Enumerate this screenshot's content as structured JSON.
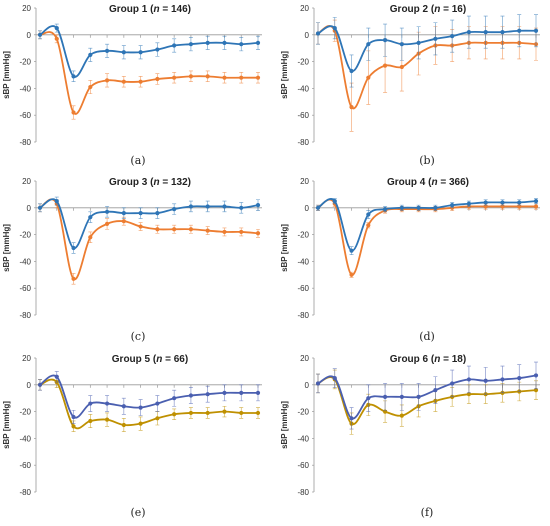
{
  "y_axis_label": "sBP [mmHg]",
  "y_ticks": [
    20,
    0,
    -20,
    -40,
    -60,
    -80
  ],
  "colors": {
    "blue": "#2e75b6",
    "orange": "#ed7d31",
    "yellow": "#bf9000",
    "dark_blue": "#4a5fb0"
  },
  "chart_data": [
    {
      "type": "line",
      "caption": "(a)",
      "title_prefix": "Group 1 (",
      "title_n": "n",
      "title_suffix": " = 146)",
      "ylim": [
        -80,
        20
      ],
      "series": [
        {
          "color": "blue",
          "values": [
            0,
            5,
            -31,
            -15,
            -12,
            -13,
            -13,
            -11,
            -8,
            -7,
            -6,
            -6,
            -7,
            -6
          ],
          "errors": [
            3,
            3,
            4,
            5,
            5,
            5,
            5,
            5,
            5,
            5,
            5,
            5,
            5,
            5
          ]
        },
        {
          "color": "orange",
          "values": [
            0,
            -3,
            -58,
            -39,
            -34,
            -35,
            -35,
            -33,
            -32,
            -31,
            -31,
            -32,
            -32,
            -32
          ],
          "errors": [
            3,
            3,
            5,
            5,
            5,
            4,
            4,
            4,
            4,
            4,
            4,
            4,
            4,
            4
          ]
        }
      ]
    },
    {
      "type": "line",
      "caption": "(b)",
      "title_prefix": "Group 2 (",
      "title_n": "n",
      "title_suffix": " = 16)",
      "ylim": [
        -80,
        20
      ],
      "series": [
        {
          "color": "blue",
          "values": [
            1,
            5,
            -27,
            -7,
            -4,
            -7,
            -6,
            -3,
            -1,
            2,
            2,
            2,
            3,
            3
          ],
          "errors": [
            8,
            8,
            12,
            12,
            12,
            12,
            12,
            12,
            12,
            12,
            12,
            12,
            12,
            12
          ]
        },
        {
          "color": "orange",
          "values": [
            1,
            3,
            -54,
            -32,
            -23,
            -24,
            -14,
            -8,
            -8,
            -6,
            -6,
            -6,
            -6,
            -7
          ],
          "errors": [
            8,
            8,
            18,
            20,
            20,
            18,
            16,
            14,
            12,
            12,
            12,
            12,
            12,
            12
          ]
        }
      ]
    },
    {
      "type": "line",
      "caption": "(c)",
      "title_prefix": "Group 3 (",
      "title_n": "n",
      "title_suffix": " = 132)",
      "ylim": [
        -80,
        20
      ],
      "series": [
        {
          "color": "blue",
          "values": [
            0,
            5,
            -30,
            -7,
            -3,
            -4,
            -4,
            -4,
            -1,
            1,
            1,
            1,
            0,
            2
          ],
          "errors": [
            3,
            3,
            4,
            4,
            4,
            4,
            4,
            4,
            4,
            4,
            4,
            4,
            4,
            4
          ]
        },
        {
          "color": "orange",
          "values": [
            0,
            3,
            -53,
            -22,
            -12,
            -10,
            -14,
            -16,
            -16,
            -16,
            -17,
            -18,
            -18,
            -19
          ],
          "errors": [
            3,
            3,
            4,
            4,
            4,
            3,
            3,
            3,
            3,
            3,
            3,
            3,
            3,
            3
          ]
        }
      ]
    },
    {
      "type": "line",
      "caption": "(d)",
      "title_prefix": "Group 4 (",
      "title_n": "n",
      "title_suffix": " = 366)",
      "ylim": [
        -80,
        20
      ],
      "series": [
        {
          "color": "blue",
          "values": [
            0,
            5,
            -32,
            -5,
            -1,
            0,
            0,
            0,
            2,
            3,
            4,
            4,
            4,
            5
          ],
          "errors": [
            2,
            2,
            3,
            3,
            2,
            2,
            2,
            2,
            2,
            2,
            2,
            2,
            2,
            2
          ]
        },
        {
          "color": "orange",
          "values": [
            0,
            3,
            -50,
            -13,
            -2,
            -1,
            -1,
            -1,
            0,
            1,
            1,
            1,
            1,
            1
          ],
          "errors": [
            2,
            2,
            2,
            2,
            2,
            2,
            2,
            2,
            2,
            2,
            2,
            2,
            2,
            2
          ]
        }
      ]
    },
    {
      "type": "line",
      "caption": "(e)",
      "title_prefix": "Group 5 (",
      "title_n": "n",
      "title_suffix": " = 66)",
      "ylim": [
        -80,
        20
      ],
      "series": [
        {
          "color": "dark_blue",
          "values": [
            0,
            6,
            -24,
            -14,
            -14,
            -16,
            -17,
            -14,
            -10,
            -8,
            -7,
            -6,
            -6,
            -6
          ],
          "errors": [
            4,
            4,
            5,
            6,
            6,
            6,
            6,
            6,
            6,
            6,
            6,
            6,
            6,
            6
          ]
        },
        {
          "color": "yellow",
          "values": [
            0,
            2,
            -31,
            -27,
            -26,
            -30,
            -29,
            -25,
            -22,
            -21,
            -21,
            -20,
            -21,
            -21
          ],
          "errors": [
            4,
            4,
            4,
            5,
            5,
            5,
            5,
            5,
            4,
            4,
            4,
            4,
            4,
            4
          ]
        }
      ]
    },
    {
      "type": "line",
      "caption": "(f)",
      "title_prefix": "Group 6 (",
      "title_n": "n",
      "title_suffix": " = 18)",
      "ylim": [
        -80,
        20
      ],
      "series": [
        {
          "color": "dark_blue",
          "values": [
            1,
            5,
            -25,
            -10,
            -9,
            -9,
            -9,
            -4,
            1,
            4,
            3,
            4,
            5,
            7
          ],
          "errors": [
            7,
            7,
            8,
            10,
            10,
            10,
            10,
            10,
            10,
            10,
            10,
            10,
            10,
            10
          ]
        },
        {
          "color": "yellow",
          "values": [
            1,
            4,
            -29,
            -15,
            -20,
            -23,
            -16,
            -12,
            -9,
            -7,
            -7,
            -6,
            -5,
            -4
          ],
          "errors": [
            7,
            7,
            8,
            8,
            8,
            8,
            8,
            8,
            7,
            7,
            7,
            7,
            7,
            7
          ]
        }
      ]
    }
  ]
}
